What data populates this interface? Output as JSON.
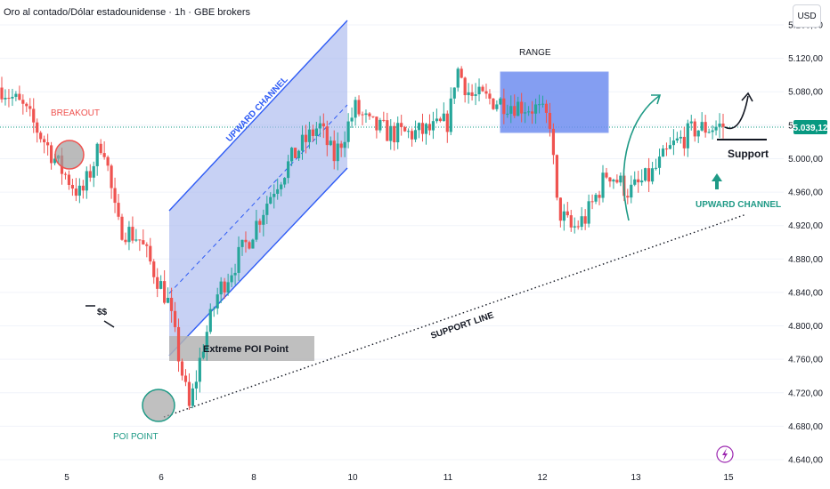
{
  "header": {
    "title": "Oro al contado/Dólar estadounidense · 1h · GBE brokers",
    "currency_button": "USD"
  },
  "colors": {
    "bull": "#26a69a",
    "bear": "#ef5350",
    "channel_fill": "#a9b9ee",
    "channel_line": "#2f5cf5",
    "range_fill": "#6e8df0",
    "annotation_green": "#1f9a86",
    "breakout_red": "#ef5350",
    "price_tag": "#089981"
  },
  "chart_data": {
    "type": "candlestick",
    "symbol": "XAU/USD",
    "timeframe": "1h",
    "ylim": [
      4630,
      5160
    ],
    "y_ticks": [
      "5.160,00",
      "5.120,00",
      "5.080,00",
      "5.040,00",
      "5.000,00",
      "4.960,00",
      "4.920,00",
      "4.880,00",
      "4.840,00",
      "4.800,00",
      "4.760,00",
      "4.720,00",
      "4.680,00",
      "4.640,00"
    ],
    "x_ticks": [
      "5",
      "6",
      "8",
      "10",
      "11",
      "12",
      "13",
      "15"
    ],
    "current_price": "5.039,12",
    "price_path": [
      {
        "t": 0,
        "p": 5085
      },
      {
        "t": 0.03,
        "p": 5060
      },
      {
        "t": 0.06,
        "p": 5020
      },
      {
        "t": 0.08,
        "p": 4990
      },
      {
        "t": 0.11,
        "p": 4955
      },
      {
        "t": 0.14,
        "p": 5025
      },
      {
        "t": 0.16,
        "p": 4920
      },
      {
        "t": 0.19,
        "p": 4905
      },
      {
        "t": 0.23,
        "p": 4830
      },
      {
        "t": 0.26,
        "p": 4700
      },
      {
        "t": 0.28,
        "p": 4780
      },
      {
        "t": 0.3,
        "p": 4840
      },
      {
        "t": 0.34,
        "p": 4900
      },
      {
        "t": 0.38,
        "p": 4970
      },
      {
        "t": 0.41,
        "p": 5010
      },
      {
        "t": 0.44,
        "p": 5040
      },
      {
        "t": 0.46,
        "p": 5000
      },
      {
        "t": 0.49,
        "p": 5060
      },
      {
        "t": 0.51,
        "p": 5040
      },
      {
        "t": 0.54,
        "p": 5030
      },
      {
        "t": 0.57,
        "p": 5030
      },
      {
        "t": 0.6,
        "p": 5035
      },
      {
        "t": 0.62,
        "p": 5045
      },
      {
        "t": 0.63,
        "p": 5110
      },
      {
        "t": 0.65,
        "p": 5075
      },
      {
        "t": 0.68,
        "p": 5070
      },
      {
        "t": 0.71,
        "p": 5065
      },
      {
        "t": 0.74,
        "p": 5060
      },
      {
        "t": 0.76,
        "p": 5045
      },
      {
        "t": 0.77,
        "p": 4940
      },
      {
        "t": 0.79,
        "p": 4915
      },
      {
        "t": 0.81,
        "p": 4930
      },
      {
        "t": 0.84,
        "p": 4985
      },
      {
        "t": 0.87,
        "p": 4960
      },
      {
        "t": 0.9,
        "p": 4980
      },
      {
        "t": 0.93,
        "p": 5015
      },
      {
        "t": 0.96,
        "p": 5035
      },
      {
        "t": 1.0,
        "p": 5039
      }
    ],
    "annotations": {
      "breakout": "BREAKOUT",
      "upward_channel_1": "UPWARD CHANNEL",
      "range": "RANGE",
      "support": "Support",
      "upward_channel_2": "UPWARD CHANNEL",
      "support_line": "SUPPORT LINE",
      "extreme_poi": "Extreme POI Point",
      "poi_point": "POI POINT",
      "liquidity": "$$"
    }
  }
}
